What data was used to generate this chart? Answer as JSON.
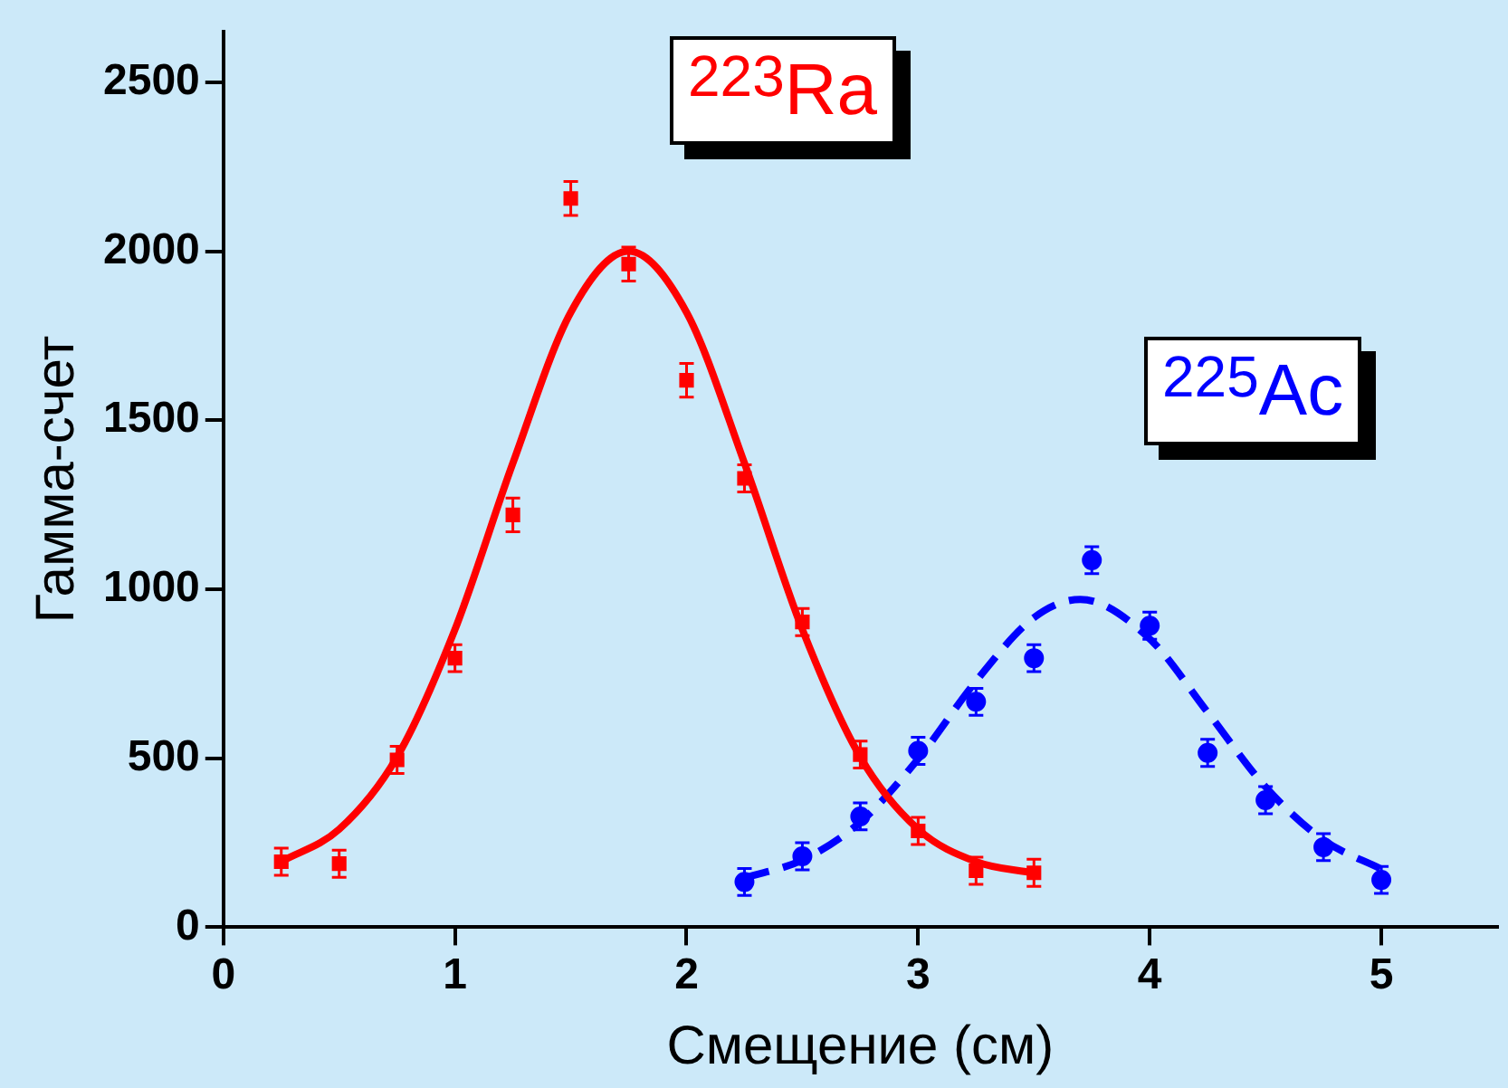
{
  "chart_data": {
    "type": "scatter",
    "xlabel": "Смещение (см)",
    "ylabel": "Гамма-счет",
    "xlim": [
      0,
      5.5
    ],
    "ylim": [
      0,
      2650
    ],
    "xticks": [
      0,
      1,
      2,
      3,
      4,
      5
    ],
    "yticks": [
      0,
      500,
      1000,
      1500,
      2000,
      2500
    ],
    "grid": false,
    "legend": false,
    "series": [
      {
        "name": "$^{223}$Ra",
        "type": "scatter",
        "marker": "square",
        "color": "#ff0000",
        "x": [
          0.25,
          0.5,
          0.75,
          1,
          1.25,
          1.5,
          1.75,
          2,
          2.25,
          2.5,
          2.75,
          3,
          3.25,
          3.5
        ],
        "values": [
          194,
          188,
          495,
          796,
          1220,
          2156,
          1962,
          1618,
          1328,
          903,
          511,
          285,
          167,
          161
        ],
        "errors": [
          40,
          40,
          40,
          40,
          50,
          50,
          50,
          50,
          40,
          40,
          40,
          40,
          40,
          40
        ]
      },
      {
        "type": "line",
        "line_style": "solid",
        "marker": "none",
        "color": "#ff0000",
        "x": [
          0.25,
          0.5,
          0.75,
          1,
          1.25,
          1.5,
          1.75,
          2,
          2.25,
          2.5,
          2.75,
          3,
          3.25,
          3.5
        ],
        "values": [
          194,
          290,
          504,
          881,
          1373,
          1819,
          2000,
          1819,
          1373,
          881,
          504,
          290,
          194,
          160
        ]
      },
      {
        "name": "$^{225}$Ac",
        "type": "scatter",
        "marker": "circle",
        "color": "#0000ff",
        "x": [
          2.25,
          2.5,
          2.75,
          3,
          3.25,
          3.5,
          3.75,
          4,
          4.25,
          4.5,
          4.75,
          5
        ],
        "values": [
          134,
          210,
          328,
          522,
          667,
          796,
          1086,
          892,
          516,
          376,
          237,
          140
        ],
        "errors": [
          40,
          40,
          40,
          40,
          40,
          40,
          40,
          40,
          40,
          40,
          40,
          40
        ]
      },
      {
        "type": "line",
        "line_style": "dashed",
        "marker": "none",
        "color": "#0000ff",
        "x": [
          2.25,
          2.5,
          2.75,
          3,
          3.25,
          3.5,
          3.7,
          4,
          4.25,
          4.5,
          4.75,
          5
        ],
        "values": [
          146,
          199,
          311,
          498,
          728,
          916,
          970,
          853,
          636,
          415,
          258,
          172
        ]
      }
    ]
  }
}
